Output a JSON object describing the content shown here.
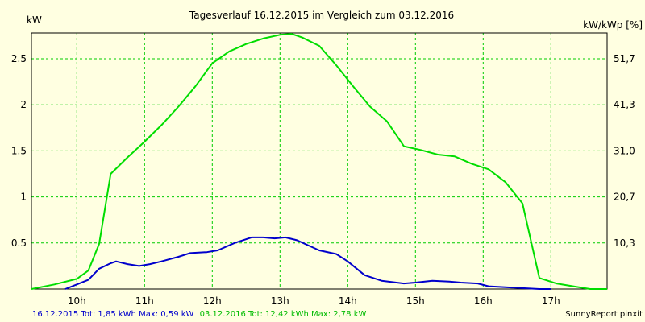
{
  "chart_data": {
    "type": "line",
    "title": "Tagesverlauf 16.12.2015 im Vergleich zum 03.12.2016",
    "ylabel_left": "kW",
    "ylabel_right": "kW/kWp [%]",
    "xlim": [
      9.33,
      17.83
    ],
    "ylim": [
      0,
      2.78
    ],
    "x_ticks": [
      10,
      11,
      12,
      13,
      14,
      15,
      16,
      17
    ],
    "x_tick_labels": [
      "10h",
      "11h",
      "12h",
      "13h",
      "14h",
      "15h",
      "16h",
      "17h"
    ],
    "y_ticks": [
      0.5,
      1,
      1.5,
      2,
      2.5
    ],
    "y_tick_labels": [
      "0.5",
      "1",
      "1.5",
      "2",
      "2.5"
    ],
    "y2_ticks": [
      0.5,
      1,
      1.5,
      2,
      2.5
    ],
    "y2_tick_labels": [
      "10,3",
      "20,7",
      "31,0",
      "41,3",
      "51,7"
    ],
    "grid": true,
    "series": [
      {
        "name": "16.12.2015",
        "color": "#0000CC",
        "points": [
          [
            9.83,
            0.0
          ],
          [
            10.0,
            0.05
          ],
          [
            10.17,
            0.1
          ],
          [
            10.33,
            0.22
          ],
          [
            10.5,
            0.28
          ],
          [
            10.58,
            0.3
          ],
          [
            10.75,
            0.27
          ],
          [
            10.92,
            0.25
          ],
          [
            11.08,
            0.27
          ],
          [
            11.25,
            0.3
          ],
          [
            11.5,
            0.35
          ],
          [
            11.67,
            0.39
          ],
          [
            11.92,
            0.4
          ],
          [
            12.08,
            0.42
          ],
          [
            12.33,
            0.5
          ],
          [
            12.58,
            0.56
          ],
          [
            12.75,
            0.56
          ],
          [
            12.92,
            0.55
          ],
          [
            13.08,
            0.56
          ],
          [
            13.25,
            0.53
          ],
          [
            13.58,
            0.42
          ],
          [
            13.83,
            0.38
          ],
          [
            14.0,
            0.3
          ],
          [
            14.25,
            0.15
          ],
          [
            14.5,
            0.09
          ],
          [
            14.83,
            0.06
          ],
          [
            15.0,
            0.07
          ],
          [
            15.25,
            0.09
          ],
          [
            15.5,
            0.08
          ],
          [
            15.67,
            0.07
          ],
          [
            15.92,
            0.06
          ],
          [
            16.08,
            0.03
          ],
          [
            16.33,
            0.02
          ],
          [
            16.58,
            0.01
          ],
          [
            16.83,
            0.0
          ],
          [
            17.0,
            0.0
          ]
        ]
      },
      {
        "name": "03.12.2016",
        "color": "#00DD00",
        "points": [
          [
            9.33,
            0.0
          ],
          [
            9.67,
            0.05
          ],
          [
            10.0,
            0.11
          ],
          [
            10.17,
            0.2
          ],
          [
            10.33,
            0.49
          ],
          [
            10.5,
            1.25
          ],
          [
            10.75,
            1.43
          ],
          [
            11.0,
            1.6
          ],
          [
            11.25,
            1.78
          ],
          [
            11.5,
            1.98
          ],
          [
            11.75,
            2.2
          ],
          [
            12.0,
            2.45
          ],
          [
            12.25,
            2.58
          ],
          [
            12.5,
            2.66
          ],
          [
            12.75,
            2.72
          ],
          [
            13.0,
            2.76
          ],
          [
            13.17,
            2.77
          ],
          [
            13.33,
            2.73
          ],
          [
            13.58,
            2.64
          ],
          [
            13.83,
            2.43
          ],
          [
            14.08,
            2.2
          ],
          [
            14.33,
            1.98
          ],
          [
            14.58,
            1.82
          ],
          [
            14.83,
            1.55
          ],
          [
            15.08,
            1.51
          ],
          [
            15.33,
            1.46
          ],
          [
            15.58,
            1.44
          ],
          [
            15.83,
            1.36
          ],
          [
            16.08,
            1.3
          ],
          [
            16.33,
            1.16
          ],
          [
            16.58,
            0.93
          ],
          [
            16.83,
            0.12
          ],
          [
            17.08,
            0.06
          ],
          [
            17.33,
            0.03
          ],
          [
            17.58,
            0.0
          ],
          [
            17.83,
            0.0
          ]
        ]
      }
    ]
  },
  "legend": {
    "series1": "16.12.2015 Tot: 1,85 kWh Max: 0,59 kW",
    "series2": "03.12.2016 Tot: 12,42 kWh Max: 2,78 kW"
  },
  "footer": "SunnyReport pinxit",
  "colors": {
    "background": "#FFFFE1",
    "grid": "#00CC00"
  }
}
